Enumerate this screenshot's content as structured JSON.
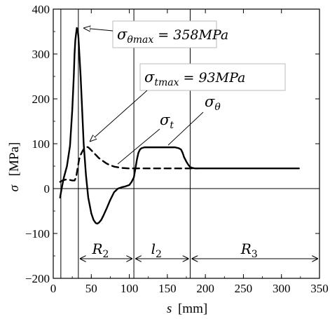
{
  "chart_data": {
    "type": "line",
    "xlabel": {
      "symbol": "s",
      "unit": "[mm]"
    },
    "ylabel": {
      "symbol": "σ",
      "unit": "[MPa]"
    },
    "xlim": [
      0,
      350
    ],
    "ylim": [
      -200,
      400
    ],
    "xticks": [
      "0",
      "50",
      "100",
      "150",
      "200",
      "250",
      "300",
      "350"
    ],
    "yticks": [
      "−200",
      "−100",
      "0",
      "100",
      "200",
      "300",
      "400"
    ],
    "grid": false,
    "series": [
      {
        "name": "σθ",
        "symbol": "σ",
        "subscript": "θ",
        "style": "solid",
        "x": [
          9,
          11,
          14,
          18,
          22,
          25,
          27,
          28,
          29,
          30,
          31,
          32,
          33,
          34,
          36,
          38,
          40,
          43,
          46,
          50,
          53,
          56,
          58,
          60,
          63,
          66,
          70,
          75,
          80,
          85,
          90,
          95,
          100,
          103,
          106,
          108,
          110,
          112,
          114,
          116,
          118,
          120,
          125,
          130,
          140,
          150,
          160,
          165,
          168,
          170,
          172,
          175,
          178,
          180,
          183,
          186,
          190,
          195,
          200,
          250,
          300,
          323
        ],
        "y": [
          -20,
          0,
          25,
          50,
          95,
          175,
          250,
          300,
          330,
          345,
          358,
          355,
          340,
          310,
          250,
          175,
          100,
          30,
          -20,
          -55,
          -70,
          -77,
          -78,
          -76,
          -70,
          -60,
          -45,
          -25,
          -8,
          0,
          3,
          5,
          8,
          15,
          25,
          45,
          65,
          80,
          87,
          90,
          91,
          92,
          92,
          92,
          92,
          92,
          92,
          90,
          87,
          80,
          70,
          60,
          52,
          48,
          46,
          45,
          45,
          45,
          45,
          45,
          45,
          45
        ]
      },
      {
        "name": "σt",
        "symbol": "σ",
        "subscript": "t",
        "style": "dashed",
        "x": [
          9,
          12,
          16,
          20,
          25,
          28,
          30,
          32,
          34,
          36,
          38,
          40,
          42,
          44,
          46,
          48,
          52,
          56,
          60,
          65,
          70,
          75,
          80,
          90,
          100,
          110,
          120,
          150,
          180,
          190
        ],
        "y": [
          15,
          18,
          20,
          20,
          18,
          18,
          25,
          45,
          65,
          75,
          82,
          88,
          91,
          93,
          92,
          89,
          82,
          75,
          68,
          62,
          56,
          52,
          49,
          46,
          45,
          45,
          45,
          45,
          45,
          45
        ]
      }
    ],
    "vlines": [
      10,
      33,
      106,
      180
    ],
    "regions": [
      {
        "symbol": "R",
        "subscript": "2",
        "from": 33,
        "to": 106
      },
      {
        "symbol": "l",
        "subscript": "2",
        "from": 106,
        "to": 180
      },
      {
        "symbol": "R",
        "subscript": "3",
        "from": 180,
        "to": 350
      }
    ],
    "annotations": [
      {
        "symbol": "σ",
        "subscript": "θmax",
        "text": "= 358MPa",
        "target_x": 31,
        "target_y": 358
      },
      {
        "symbol": "σ",
        "subscript": "tmax",
        "text": "= 93MPa",
        "target_x": 44,
        "target_y": 93
      }
    ]
  }
}
